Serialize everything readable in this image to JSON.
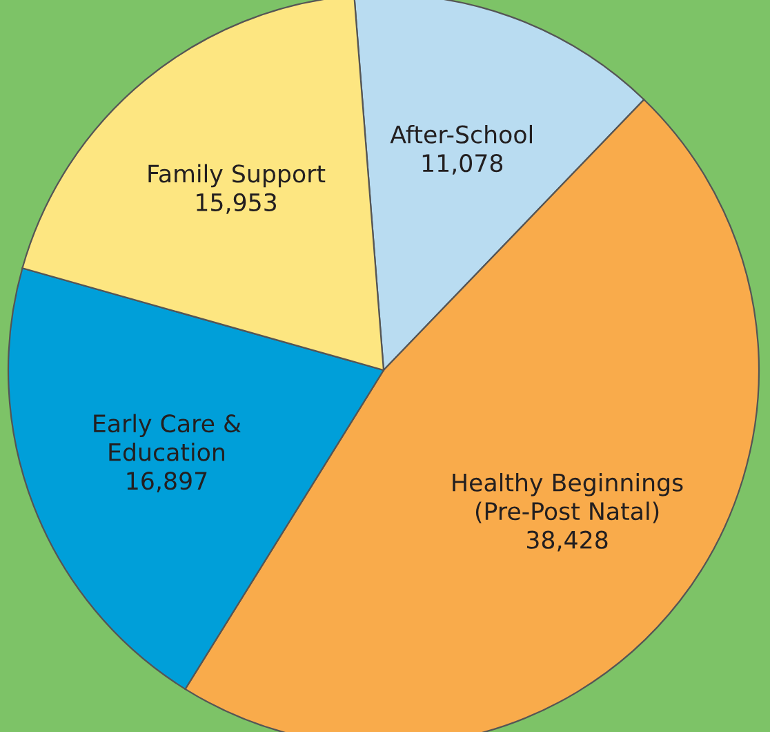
{
  "chart_data": {
    "type": "pie",
    "categories": [
      "After-School",
      "Healthy Beginnings\n(Pre-Post Natal)",
      "Early Care &\nEducation",
      "Family Support"
    ],
    "values": [
      11078,
      38428,
      16897,
      15953
    ],
    "value_labels": [
      "11,078",
      "38,428",
      "16,897",
      "15,953"
    ],
    "colors": [
      "#b9dcf1",
      "#f9ab4b",
      "#009fd9",
      "#fde681"
    ]
  }
}
